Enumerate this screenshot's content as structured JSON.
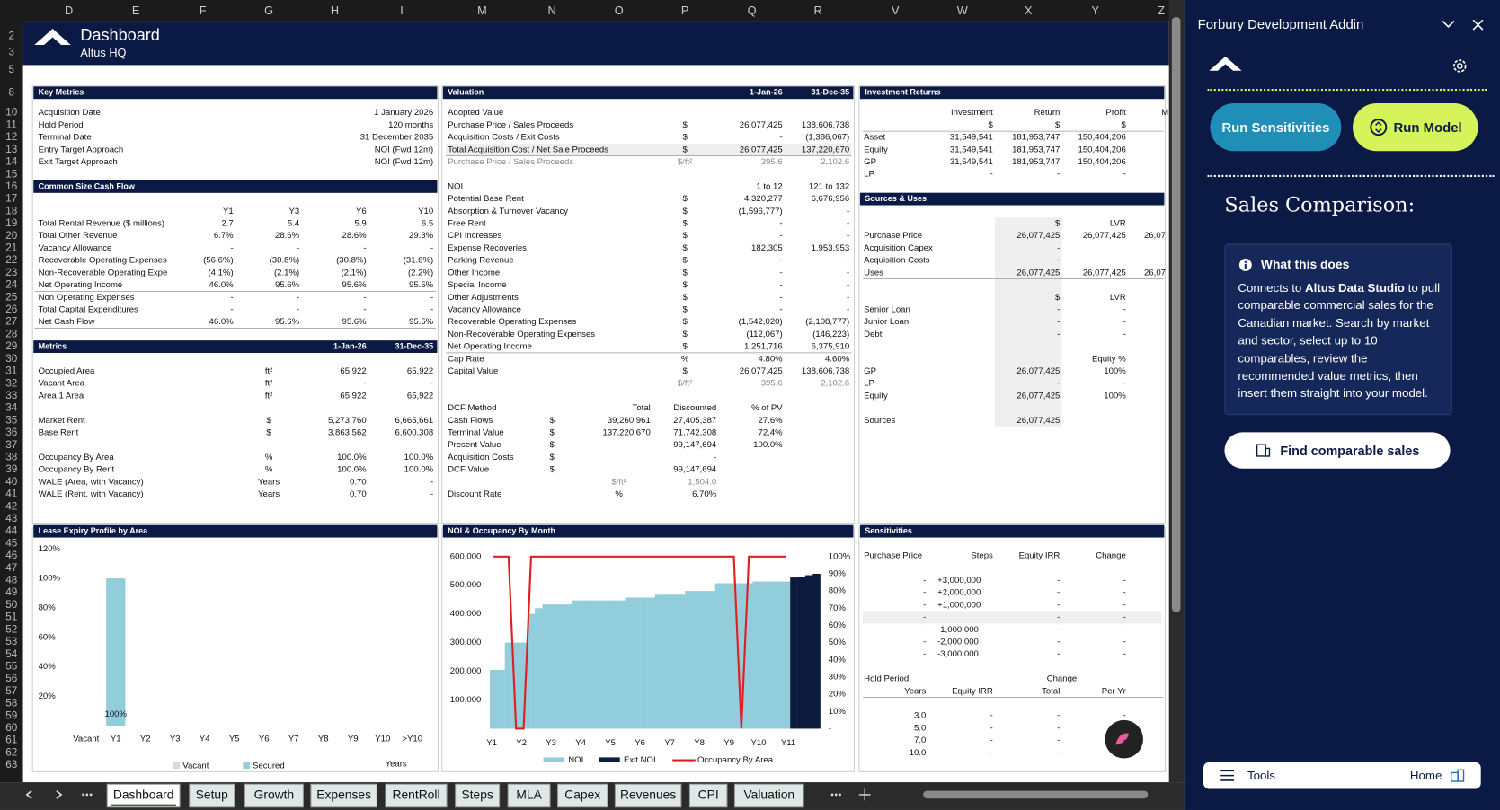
{
  "columns": [
    "D",
    "E",
    "F",
    "G",
    "H",
    "I",
    "M",
    "N",
    "O",
    "P",
    "Q",
    "R",
    "V",
    "W",
    "X",
    "Y",
    "Z"
  ],
  "row_numbers": [
    2,
    3,
    5,
    8,
    10,
    11,
    12,
    13,
    14,
    15,
    16,
    17,
    18,
    19,
    20,
    21,
    22,
    23,
    24,
    25,
    26,
    27,
    28,
    29,
    30,
    31,
    32,
    33,
    34,
    35,
    36,
    37,
    38,
    39,
    40,
    41,
    42,
    43,
    44,
    45,
    46,
    47,
    48,
    49,
    50,
    51,
    52,
    53,
    54,
    55,
    56,
    57,
    58,
    59,
    60,
    61,
    62,
    63
  ],
  "banner": {
    "title": "Dashboard",
    "subtitle": "Altus HQ"
  },
  "panels": {
    "key_metrics": {
      "title": "Key Metrics",
      "rows": [
        [
          "Acquisition Date",
          "1 January 2026"
        ],
        [
          "Hold Period",
          "120 months"
        ],
        [
          "Terminal Date",
          "31 December 2035"
        ],
        [
          "Entry Target Approach",
          "NOI (Fwd 12m)"
        ],
        [
          "Exit Target Approach",
          "NOI (Fwd 12m)"
        ]
      ]
    },
    "cash_flow": {
      "title": "Common Size Cash Flow",
      "rows": [
        [
          null,
          "Y1",
          "Y3",
          "Y6",
          "Y10"
        ],
        [
          "Total Rental Revenue ($ millions)",
          "2.7",
          "5.4",
          "5.9",
          "6.5"
        ],
        [
          "Total Other Revenue",
          "6.7%",
          "28.6%",
          "28.6%",
          "29.3%"
        ],
        [
          "Vacancy Allowance",
          "-",
          "-",
          "-",
          "-"
        ],
        [
          "Recoverable Operating Expenses",
          "(56.6%)",
          "(30.8%)",
          "(30.8%)",
          "(31.6%)"
        ],
        [
          "Non-Recoverable Operating Expe",
          "(4.1%)",
          "(2.1%)",
          "(2.1%)",
          "(2.2%)"
        ],
        [
          "Net Operating Income",
          "46.0%",
          "95.6%",
          "95.6%",
          "95.5%"
        ],
        [
          "Non Operating Expenses",
          "-",
          "-",
          "-",
          "-"
        ],
        [
          "Total Capital Expenditures",
          "-",
          "-",
          "-",
          "-"
        ],
        [
          "Net Cash Flow",
          "46.0%",
          "95.6%",
          "95.6%",
          "95.5%"
        ]
      ]
    },
    "metrics": {
      "title": "Metrics",
      "header": [
        "1-Jan-26",
        "31-Dec-35"
      ],
      "rows": [
        [
          "Occupied Area",
          "ft²",
          "65,922",
          "65,922"
        ],
        [
          "Vacant Area",
          "ft²",
          "-",
          "-"
        ],
        [
          "Area 1 Area",
          "ft²",
          "65,922",
          "65,922"
        ],
        null,
        [
          "Market Rent",
          "$",
          "5,273,760",
          "6,665,661"
        ],
        [
          "Base Rent",
          "$",
          "3,863,562",
          "6,600,308"
        ],
        null,
        [
          "Occupancy By Area",
          "%",
          "100.0%",
          "100.0%"
        ],
        [
          "Occupancy By Rent",
          "%",
          "100.0%",
          "100.0%"
        ],
        [
          "WALE (Area, with Vacancy)",
          "Years",
          "0.70",
          "-"
        ],
        [
          "WALE (Rent, with Vacancy)",
          "Years",
          "0.70",
          "-"
        ]
      ]
    },
    "valuation": {
      "title": "Valuation",
      "header": [
        "1-Jan-26",
        "31-Dec-35"
      ],
      "rows": [
        [
          "Adopted Value",
          null,
          null,
          null
        ],
        [
          "Purchase Price / Sales Proceeds",
          "$",
          "26,077,425",
          "138,606,738"
        ],
        [
          "Acquisition Costs / Exit Costs",
          "$",
          "-",
          "(1,386,067)"
        ],
        [
          "Total Acquisition Cost / Net Sale Proceeds",
          "$",
          "26,077,425",
          "137,220,670"
        ],
        [
          "Purchase Price / Sales Proceeds",
          "$/ft²",
          "395.6",
          "2,102.6"
        ],
        null,
        [
          "NOI",
          null,
          "1 to 12",
          "121 to 132"
        ],
        [
          "Potential Base Rent",
          "$",
          "4,320,277",
          "6,676,956"
        ],
        [
          "Absorption & Turnover Vacancy",
          "$",
          "(1,596,777)",
          "-"
        ],
        [
          "Free Rent",
          "$",
          "-",
          "-"
        ],
        [
          "CPI Increases",
          "$",
          "-",
          "-"
        ],
        [
          "Expense Recoveries",
          "$",
          "182,305",
          "1,953,953"
        ],
        [
          "Parking Revenue",
          "$",
          "-",
          "-"
        ],
        [
          "Other Income",
          "$",
          "-",
          "-"
        ],
        [
          "Special Income",
          "$",
          "-",
          "-"
        ],
        [
          "Other Adjustments",
          "$",
          "-",
          "-"
        ],
        [
          "Vacancy Allowance",
          "$",
          "-",
          "-"
        ],
        [
          "Recoverable Operating Expenses",
          "$",
          "(1,542,020)",
          "(2,108,777)"
        ],
        [
          "Non-Recoverable Operating Expenses",
          "$",
          "(112,067)",
          "(146,223)"
        ],
        [
          "Net Operating Income",
          "$",
          "1,251,716",
          "6,375,910"
        ],
        [
          "Cap Rate",
          "%",
          "4.80%",
          "4.60%"
        ],
        [
          "Capital Value",
          "$",
          "26,077,425",
          "138,606,738"
        ],
        [
          null,
          "$/ft²",
          "395.6",
          "2,102.6"
        ]
      ]
    },
    "dcf": {
      "rows": [
        [
          "DCF Method",
          null,
          "Total",
          "Discounted",
          "% of PV"
        ],
        [
          "Cash Flows",
          "$",
          "39,260,961",
          "27,405,387",
          "27.6%"
        ],
        [
          "Terminal Value",
          "$",
          "137,220,670",
          "71,742,308",
          "72.4%"
        ],
        [
          "Present Value",
          "$",
          null,
          "99,147,694",
          "100.0%"
        ],
        [
          "Acquisition Costs",
          "$",
          null,
          "-",
          null
        ],
        [
          "DCF Value",
          "$",
          null,
          "99,147,694",
          null
        ]
      ]
    },
    "discount": {
      "rows": [
        [
          null,
          "$/ft²",
          "1,504.0"
        ],
        [
          "Discount Rate",
          "%",
          "6.70%"
        ]
      ]
    },
    "investment_returns": {
      "title": "Investment Returns",
      "rows": [
        [
          null,
          "Investment",
          "Return",
          "Profit",
          "M"
        ],
        [
          null,
          "$",
          "$",
          "$",
          null
        ],
        [
          "Asset",
          "31,549,541",
          "181,953,747",
          "150,404,206",
          null
        ],
        [
          "Equity",
          "31,549,541",
          "181,953,747",
          "150,404,206",
          null
        ],
        [
          "GP",
          "31,549,541",
          "181,953,747",
          "150,404,206",
          null
        ],
        [
          "LP",
          "-",
          "-",
          "-",
          null
        ]
      ]
    },
    "sources_uses": {
      "title": "Sources & Uses",
      "rows": [
        [
          null,
          "$",
          "LVR",
          null
        ],
        [
          "Purchase Price",
          "26,077,425",
          "26,077,425",
          "26,07"
        ],
        [
          "Acquisition Capex",
          "-",
          null,
          null
        ],
        [
          "Acquisition Costs",
          "-",
          null,
          null
        ],
        [
          "Uses",
          "26,077,425",
          "26,077,425",
          "26,07"
        ],
        null,
        [
          null,
          "$",
          "LVR",
          null
        ],
        [
          "Senior Loan",
          "-",
          "-",
          null
        ],
        [
          "Junior Loan",
          "-",
          "-",
          null
        ],
        [
          "Debt",
          "-",
          "-",
          null
        ],
        null,
        [
          null,
          null,
          "Equity %",
          null
        ],
        [
          "GP",
          "26,077,425",
          "100%",
          null
        ],
        [
          "LP",
          "-",
          "-",
          null
        ],
        [
          "Equity",
          "26,077,425",
          "100%",
          null
        ],
        null,
        [
          "Sources",
          "26,077,425",
          null,
          null
        ]
      ]
    },
    "sensitivities": {
      "title": "Sensitivities",
      "rows": [
        [
          "Purchase Price",
          "Steps",
          "Equity IRR",
          "Change"
        ]
      ]
    },
    "price_steps": {
      "rows": [
        [
          "-",
          "+3,000,000",
          "-",
          "-"
        ],
        [
          "-",
          "+2,000,000",
          "-",
          "-"
        ],
        [
          "-",
          "+1,000,000",
          "-",
          "-"
        ],
        [
          "-",
          null,
          "-",
          "-"
        ],
        [
          "-",
          "-1,000,000",
          "-",
          "-"
        ],
        [
          "-",
          "-2,000,000",
          "-",
          "-"
        ],
        [
          "-",
          "-3,000,000",
          "-",
          "-"
        ]
      ]
    },
    "hold_period": {
      "label": "Hold Period",
      "change": "Change",
      "rows": [
        [
          "Years",
          "Equity IRR",
          "Total",
          "Per Yr"
        ],
        null,
        [
          "3.0",
          "-",
          "-",
          "-"
        ],
        [
          "5.0",
          "-",
          "-",
          "-"
        ],
        [
          "7.0",
          "-",
          "-",
          "-"
        ],
        [
          "10.0",
          "-",
          "-",
          "-"
        ]
      ]
    }
  },
  "lease_chart": {
    "type": "bar",
    "title": "Lease Expiry Profile by Area",
    "x_label": "Years",
    "categories": [
      "Vacant",
      "Y1",
      "Y2",
      "Y3",
      "Y4",
      "Y5",
      "Y6",
      "Y7",
      "Y8",
      "Y9",
      "Y10",
      ">Y10"
    ],
    "series": [
      {
        "name": "Vacant",
        "color": "#d9d9d9",
        "values": [
          0,
          0,
          0,
          0,
          0,
          0,
          0,
          0,
          0,
          0,
          0,
          0
        ]
      },
      {
        "name": "Secured",
        "color": "#92cddc",
        "values": [
          0,
          100,
          0,
          0,
          0,
          0,
          0,
          0,
          0,
          0,
          0,
          0
        ],
        "value_labels": [
          null,
          "100%",
          null,
          null,
          null,
          null,
          null,
          null,
          null,
          null,
          null,
          null
        ]
      }
    ],
    "ylim": [
      0,
      120
    ],
    "yticks": [
      {
        "value": 20,
        "label": "20%"
      },
      {
        "value": 40,
        "label": "40%"
      },
      {
        "value": 60,
        "label": "60%"
      },
      {
        "value": 80,
        "label": "80%"
      },
      {
        "value": 100,
        "label": "100%"
      },
      {
        "value": 120,
        "label": "120%"
      }
    ]
  },
  "noi_chart": {
    "type": "bar",
    "title": "NOI & Occupancy By Month",
    "categories": [
      "Y1",
      "Y2",
      "Y3",
      "Y4",
      "Y5",
      "Y6",
      "Y7",
      "Y8",
      "Y9",
      "Y10",
      "Y11"
    ],
    "series": [
      {
        "name": "NOI",
        "color": "#92cddc",
        "values": [
          205000,
          205000,
          300000,
          300000,
          300000,
          400000,
          420000,
          433000,
          433000,
          433000,
          433000,
          447000,
          447000,
          447000,
          447000,
          447000,
          447000,
          447000,
          457000,
          457000,
          457000,
          457000,
          467000,
          467000,
          467000,
          467000,
          480000,
          480000,
          480000,
          480000,
          507000,
          507000,
          507000,
          507000,
          507000,
          513000,
          513000,
          513000,
          513000,
          513000,
          null,
          null,
          null,
          null
        ]
      },
      {
        "name": "Exit NOI",
        "color": "#0d1b3e",
        "values": [
          null,
          null,
          null,
          null,
          null,
          null,
          null,
          null,
          null,
          null,
          null,
          null,
          null,
          null,
          null,
          null,
          null,
          null,
          null,
          null,
          null,
          null,
          null,
          null,
          null,
          null,
          null,
          null,
          null,
          null,
          null,
          null,
          null,
          null,
          null,
          null,
          null,
          null,
          null,
          null,
          527000,
          530000,
          535000,
          540000
        ]
      },
      {
        "name": "Occupancy By Area",
        "color": "#e02020",
        "axis": "y2",
        "values": [
          100,
          100,
          100,
          0,
          0,
          100,
          100,
          100,
          100,
          100,
          100,
          100,
          100,
          100,
          100,
          100,
          100,
          100,
          100,
          100,
          100,
          100,
          100,
          100,
          100,
          100,
          100,
          100,
          100,
          100,
          100,
          100,
          100,
          0,
          100,
          100,
          100,
          100,
          100,
          100,
          null,
          null,
          null,
          null
        ]
      }
    ],
    "ylim": [
      0,
      600000
    ],
    "yticks": [
      {
        "value": 100000,
        "label": "100,000"
      },
      {
        "value": 200000,
        "label": "200,000"
      },
      {
        "value": 300000,
        "label": "300,000"
      },
      {
        "value": 400000,
        "label": "400,000"
      },
      {
        "value": 500000,
        "label": "500,000"
      },
      {
        "value": 600000,
        "label": "600,000"
      }
    ],
    "y2lim": [
      0,
      100
    ],
    "y2ticks": [
      {
        "value": 0,
        "label": "-"
      },
      {
        "value": 10,
        "label": "10%"
      },
      {
        "value": 20,
        "label": "20%"
      },
      {
        "value": 30,
        "label": "30%"
      },
      {
        "value": 40,
        "label": "40%"
      },
      {
        "value": 50,
        "label": "50%"
      },
      {
        "value": 60,
        "label": "60%"
      },
      {
        "value": 70,
        "label": "70%"
      },
      {
        "value": 80,
        "label": "80%"
      },
      {
        "value": 90,
        "label": "90%"
      },
      {
        "value": 100,
        "label": "100%"
      }
    ]
  },
  "sheet_tabs": [
    "Dashboard",
    "Setup",
    "Growth",
    "Expenses",
    "RentRoll",
    "Steps",
    "MLA",
    "Capex",
    "Revenues",
    "CPI",
    "Valuation"
  ],
  "addin": {
    "title": "Forbury Development Addin",
    "buttons": [
      "Run Sensitivities",
      "Run Model"
    ],
    "heading": "Sales Comparison:",
    "info_title": "What this does",
    "info_text": [
      "Connects to ",
      "Altus Data Studio",
      " to pull comparable commercial sales for the Canadian market. Search by market and sector, select up to 10 comparables, review the recommended value metrics, then insert them straight into your model."
    ],
    "action": "Find comparable sales",
    "footer": [
      "Tools",
      "Home"
    ]
  }
}
